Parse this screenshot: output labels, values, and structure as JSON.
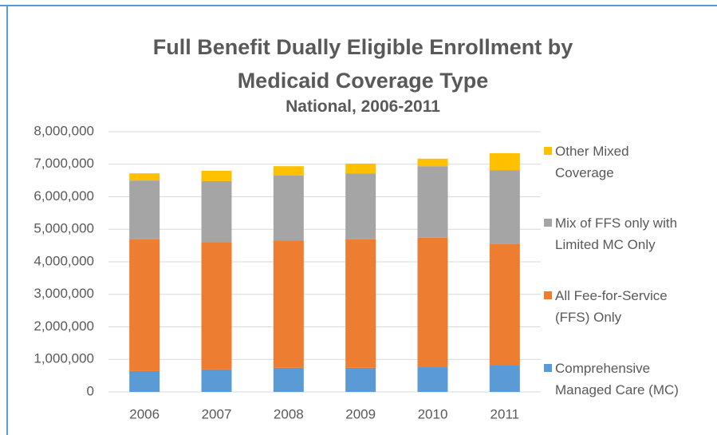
{
  "chart_data": {
    "type": "stacked_bar",
    "title": "Full Benefit Dually Eligible Enrollment by Medicaid Coverage Type",
    "subtitle": "National, 2006-2011",
    "categories": [
      "2006",
      "2007",
      "2008",
      "2009",
      "2010",
      "2011"
    ],
    "series": [
      {
        "name": "Comprehensive Managed Care (MC)",
        "color": "#5b9bd5",
        "values": [
          640000,
          690000,
          740000,
          740000,
          760000,
          810000
        ]
      },
      {
        "name": "All Fee-for-Service (FFS) Only",
        "color": "#ed7d31",
        "values": [
          4050000,
          3920000,
          3920000,
          3950000,
          3980000,
          3730000
        ]
      },
      {
        "name": "Mix of FFS only with Limited MC Only",
        "color": "#a5a5a5",
        "values": [
          1810000,
          1870000,
          1990000,
          2030000,
          2200000,
          2280000
        ]
      },
      {
        "name": "Other Mixed Coverage",
        "color": "#ffc000",
        "values": [
          220000,
          320000,
          290000,
          300000,
          230000,
          520000
        ]
      }
    ],
    "ylim": [
      0,
      8000000
    ],
    "yticks": [
      0,
      {
        "value": 1000000,
        "label": "1,000,000"
      },
      {
        "value": 2000000,
        "label": "2,000,000"
      },
      {
        "value": 3000000,
        "label": "3,000,000"
      },
      {
        "value": 4000000,
        "label": "4,000,000"
      },
      {
        "value": 5000000,
        "label": "5,000,000"
      },
      {
        "value": 6000000,
        "label": "6,000,000"
      },
      {
        "value": 7000000,
        "label": "7,000,000"
      },
      {
        "value": 8000000,
        "label": "8,000,000"
      }
    ],
    "grid": true,
    "legend": "right"
  }
}
